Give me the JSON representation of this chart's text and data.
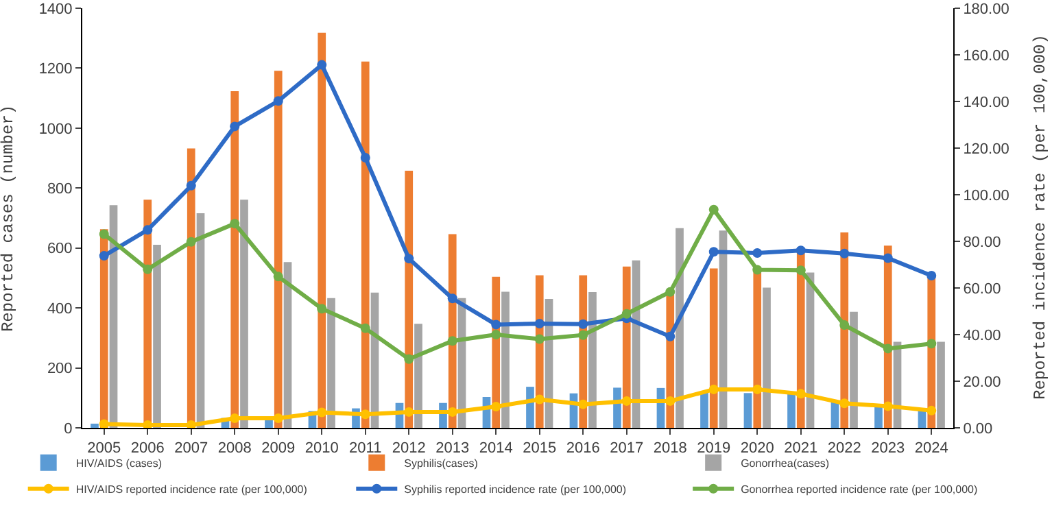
{
  "chart_data": {
    "type": "bar",
    "ylabel": "Reported cases (number)",
    "y2label": "Reported incidence rate (per 100,000)",
    "categories": [
      "2005",
      "2006",
      "2007",
      "2008",
      "2009",
      "2010",
      "2011",
      "2012",
      "2013",
      "2014",
      "2015",
      "2016",
      "2017",
      "2018",
      "2019",
      "2020",
      "2021",
      "2022",
      "2023",
      "2024"
    ],
    "series": [
      {
        "name": "HIV/AIDS (cases)",
        "color": "#5b9bd5",
        "values": [
          14,
          null,
          null,
          33,
          26,
          56,
          65,
          83,
          83,
          103,
          137,
          115,
          134,
          133,
          120,
          116,
          113,
          86,
          71,
          60
        ]
      },
      {
        "name": "Syphilis(cases)",
        "color": "#ed7d31",
        "values": [
          663,
          761,
          932,
          1123,
          1191,
          1318,
          1222,
          858,
          646,
          504,
          509,
          509,
          538,
          456,
          532,
          520,
          590,
          652,
          608,
          510
        ]
      },
      {
        "name": "Gonorrhea(cases)",
        "color": "#a5a5a5",
        "values": [
          743,
          611,
          716,
          761,
          553,
          433,
          451,
          347,
          433,
          454,
          430,
          453,
          559,
          666,
          658,
          468,
          518,
          387,
          287,
          287
        ]
      },
      {
        "name": "HIV/AIDS reported incidence rate (per 100,000)",
        "type": "line",
        "axis": "y2",
        "color": "#ffc000",
        "values": [
          1.6,
          1.2,
          1.2,
          4.1,
          4.1,
          6.6,
          5.8,
          6.8,
          6.8,
          9.1,
          12.2,
          10.1,
          11.5,
          11.5,
          16.5,
          16.5,
          14.6,
          10.5,
          9.3,
          7.4
        ]
      },
      {
        "name": "Syphilis reported incidence rate (per 100,000)",
        "type": "line",
        "axis": "y2",
        "color": "#2e6bc6",
        "values": [
          73.8,
          84.9,
          103.9,
          129.3,
          140.2,
          155.7,
          115.9,
          72.6,
          55.5,
          44.3,
          44.7,
          44.5,
          47.0,
          39.2,
          75.5,
          75.0,
          76.1,
          74.8,
          72.8,
          65.3
        ]
      },
      {
        "name": "Gonorrhea reported incidence rate (per 100,000)",
        "type": "line",
        "axis": "y2",
        "color": "#70ad47",
        "values": [
          83.1,
          68.0,
          79.8,
          87.6,
          64.9,
          51.1,
          42.7,
          29.5,
          37.3,
          40.0,
          38.1,
          39.8,
          48.9,
          58.3,
          93.6,
          67.8,
          67.6,
          44.1,
          34.0,
          36.1
        ]
      }
    ],
    "ylim": [
      0,
      1400
    ],
    "yticks": [
      0,
      200,
      400,
      600,
      800,
      1000,
      1200,
      1400
    ],
    "y2lim": [
      0,
      180
    ],
    "y2ticks": [
      {
        "value": 0,
        "label": "0.00"
      },
      {
        "value": 20,
        "label": "20.00"
      },
      {
        "value": 40,
        "label": "40.00"
      },
      {
        "value": 60,
        "label": "60.00"
      },
      {
        "value": 80,
        "label": "80.00"
      },
      {
        "value": 100,
        "label": "100.00"
      },
      {
        "value": 120,
        "label": "120.00"
      },
      {
        "value": 140,
        "label": "140.00"
      },
      {
        "value": 160,
        "label": "160.00"
      },
      {
        "value": 180,
        "label": "180.00"
      }
    ],
    "grid": false,
    "legend": "bottom",
    "marker": "circle",
    "line_style": "solid"
  }
}
